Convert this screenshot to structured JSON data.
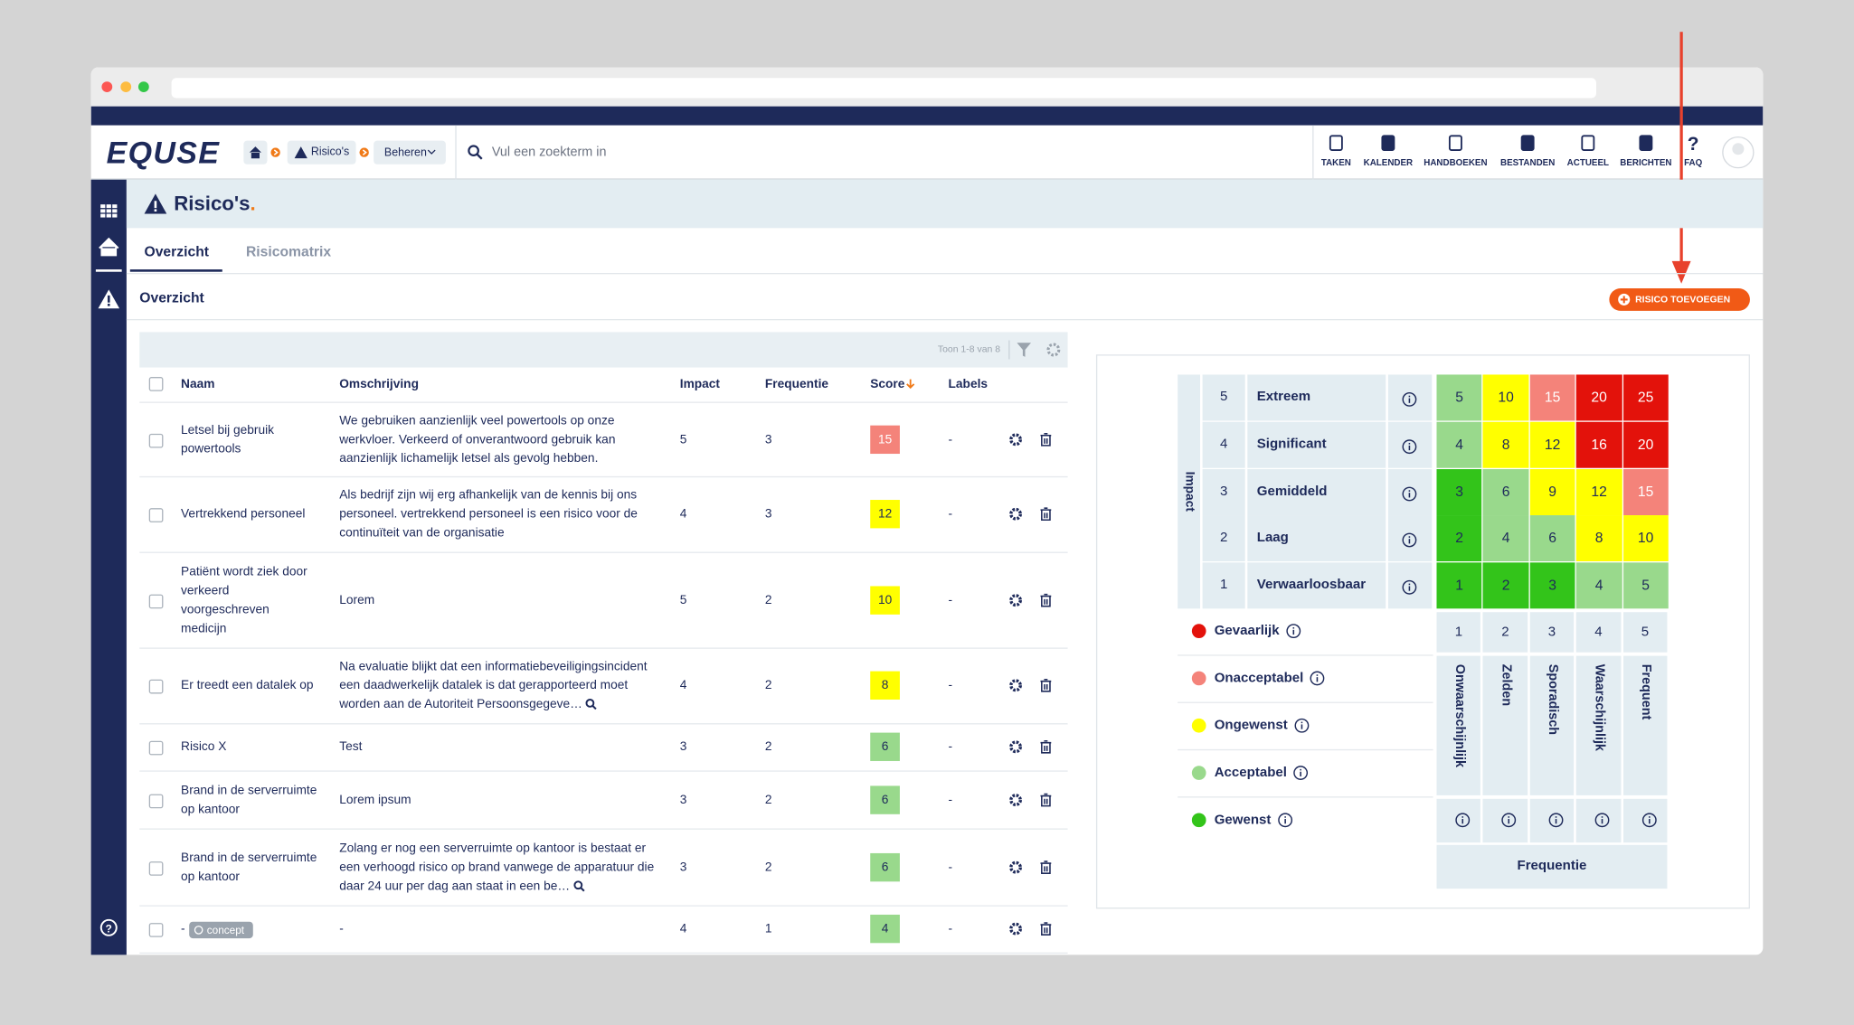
{
  "header": {
    "logo": "EQUSE",
    "breadcrumb": [
      "Risico's",
      "Beheren"
    ],
    "search_placeholder": "Vul een zoekterm in",
    "nav": [
      "TAKEN",
      "KALENDER",
      "HANDBOEKEN",
      "BESTANDEN",
      "ACTUEEL",
      "BERICHTEN",
      "FAQ"
    ]
  },
  "page": {
    "title": "Risico's",
    "tabs": [
      "Overzicht",
      "Risicomatrix"
    ],
    "active_tab": 0,
    "section_title": "Overzicht",
    "add_button": "RISICO TOEVOEGEN"
  },
  "table": {
    "pagination": "Toon 1-8 van 8",
    "columns": [
      "Naam",
      "Omschrijving",
      "Impact",
      "Frequentie",
      "Score",
      "Labels"
    ],
    "sort_column": 4,
    "rows": [
      {
        "naam": [
          "Letsel bij gebruik",
          "powertools"
        ],
        "omschrijving": [
          "We gebruiken aanzienlijk veel powertools op onze",
          "werkvloer. Verkeerd of onverantwoord gebruik kan",
          "aanzienlijk lichamelijk letsel als gevolg hebben."
        ],
        "impact": 5,
        "frequentie": 3,
        "score": 15,
        "labels": "-"
      },
      {
        "naam": [
          "Vertrekkend personeel"
        ],
        "omschrijving": [
          "Als bedrijf zijn wij erg afhankelijk van de kennis bij ons",
          "personeel. vertrekkend personeel is een risico voor de",
          "continuïteit van de organisatie"
        ],
        "impact": 4,
        "frequentie": 3,
        "score": 12,
        "labels": "-"
      },
      {
        "naam": [
          "Patiënt wordt ziek door",
          "verkeerd",
          "voorgeschreven",
          "medicijn"
        ],
        "omschrijving": [
          "Lorem"
        ],
        "impact": 5,
        "frequentie": 2,
        "score": 10,
        "labels": "-"
      },
      {
        "naam": [
          "Er treedt een datalek op"
        ],
        "omschrijving": [
          "Na evaluatie blijkt dat een informatiebeveiligingsincident",
          "een daadwerkelijk datalek is dat gerapporteerd moet",
          "worden aan de Autoriteit Persoonsgegeve…"
        ],
        "expandable": true,
        "impact": 4,
        "frequentie": 2,
        "score": 8,
        "labels": "-"
      },
      {
        "naam": [
          "Risico X"
        ],
        "omschrijving": [
          "Test"
        ],
        "impact": 3,
        "frequentie": 2,
        "score": 6,
        "labels": "-"
      },
      {
        "naam": [
          "Brand in de serverruimte",
          "op kantoor"
        ],
        "omschrijving": [
          "Lorem ipsum"
        ],
        "impact": 3,
        "frequentie": 2,
        "score": 6,
        "labels": "-"
      },
      {
        "naam": [
          "Brand in de serverruimte",
          "op kantoor"
        ],
        "omschrijving": [
          "Zolang er nog een serverruimte op kantoor is bestaat er",
          "een verhoogd risico op brand vanwege de apparatuur die",
          "daar 24 uur per dag aan staat in een be…"
        ],
        "expandable": true,
        "impact": 3,
        "frequentie": 2,
        "score": 6,
        "labels": "-"
      },
      {
        "naam": [
          "-"
        ],
        "tag": "concept",
        "omschrijving": [
          "-"
        ],
        "impact": 4,
        "frequentie": 1,
        "score": 4,
        "labels": "-"
      }
    ]
  },
  "matrix": {
    "impact_label": "Impact",
    "frequency_label": "Frequentie",
    "impact_levels": [
      {
        "value": 5,
        "label": "Extreem"
      },
      {
        "value": 4,
        "label": "Significant"
      },
      {
        "value": 3,
        "label": "Gemiddeld"
      },
      {
        "value": 2,
        "label": "Laag"
      },
      {
        "value": 1,
        "label": "Verwaarloosbaar"
      }
    ],
    "frequency_levels": [
      {
        "value": 1,
        "label": "Onwaarschijnlijk"
      },
      {
        "value": 2,
        "label": "Zelden"
      },
      {
        "value": 3,
        "label": "Sporadisch"
      },
      {
        "value": 4,
        "label": "Waarschijnlijk"
      },
      {
        "value": 5,
        "label": "Frequent"
      }
    ],
    "cells": [
      [
        {
          "value": 5,
          "level": 3
        },
        {
          "value": 10,
          "level": 2
        },
        {
          "value": 15,
          "level": 1
        },
        {
          "value": 20,
          "level": 0
        },
        {
          "value": 25,
          "level": 0
        }
      ],
      [
        {
          "value": 4,
          "level": 3
        },
        {
          "value": 8,
          "level": 2
        },
        {
          "value": 12,
          "level": 2
        },
        {
          "value": 16,
          "level": 0
        },
        {
          "value": 20,
          "level": 0
        }
      ],
      [
        {
          "value": 3,
          "level": 4
        },
        {
          "value": 6,
          "level": 3
        },
        {
          "value": 9,
          "level": 2
        },
        {
          "value": 12,
          "level": 2
        },
        {
          "value": 15,
          "level": 1
        }
      ],
      [
        {
          "value": 2,
          "level": 4
        },
        {
          "value": 4,
          "level": 3
        },
        {
          "value": 6,
          "level": 3
        },
        {
          "value": 8,
          "level": 2
        },
        {
          "value": 10,
          "level": 2
        }
      ],
      [
        {
          "value": 1,
          "level": 4
        },
        {
          "value": 2,
          "level": 4
        },
        {
          "value": 3,
          "level": 4
        },
        {
          "value": 4,
          "level": 3
        },
        {
          "value": 5,
          "level": 3
        }
      ]
    ],
    "legend": [
      {
        "name": "Gevaarlijk",
        "color": "#e3120b"
      },
      {
        "name": "Onacceptabel",
        "color": "#f4837a"
      },
      {
        "name": "Ongewenst",
        "color": "#ffff00"
      },
      {
        "name": "Acceptabel",
        "color": "#99d98c"
      },
      {
        "name": "Gewenst",
        "color": "#33c41a"
      }
    ]
  }
}
